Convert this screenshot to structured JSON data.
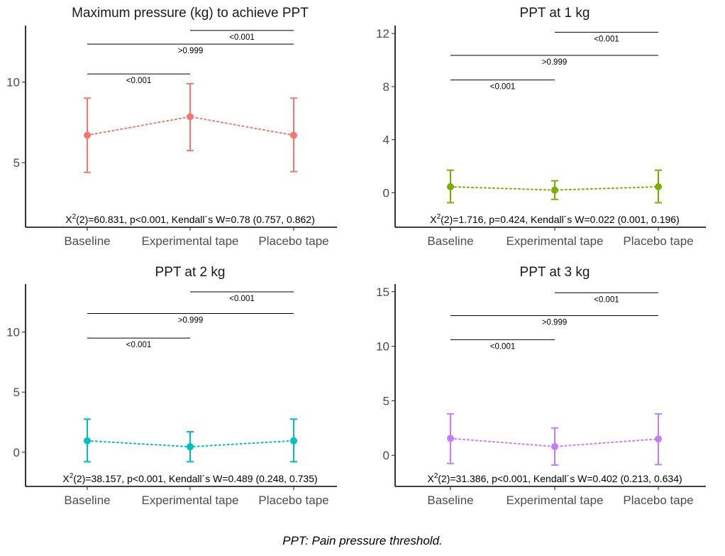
{
  "caption": "PPT: Pain pressure threshold.",
  "chart_data": [
    {
      "type": "line",
      "title": "Maximum pressure (kg) to achieve PPT",
      "color": "#F8766D",
      "categories": [
        "Baseline",
        "Experimental tape",
        "Placebo tape"
      ],
      "mean": [
        6.7,
        7.85,
        6.7
      ],
      "lower": [
        4.4,
        5.75,
        4.45
      ],
      "upper": [
        9.0,
        9.9,
        9.0
      ],
      "ylim": [
        1.0,
        13.5
      ],
      "yticks": [
        5,
        10
      ],
      "comparisons": [
        {
          "from": 0,
          "to": 1,
          "y": 10.5,
          "label": "<0.001"
        },
        {
          "from": 0,
          "to": 2,
          "y": 12.35,
          "label": ">0.999"
        },
        {
          "from": 1,
          "to": 2,
          "y": 13.2,
          "label": "<0.001"
        }
      ],
      "stat": {
        "x2": "X",
        "sup": "2",
        "rest": "(2)=60.831, p<0.001, Kendall´s W=0.78 (0.757, 0.862)"
      }
    },
    {
      "type": "line",
      "title": "PPT at 1 kg",
      "color": "#7CAE00",
      "categories": [
        "Baseline",
        "Experimental tape",
        "Placebo tape"
      ],
      "mean": [
        0.45,
        0.2,
        0.45
      ],
      "lower": [
        -0.75,
        -0.5,
        -0.75
      ],
      "upper": [
        1.7,
        0.9,
        1.7
      ],
      "ylim": [
        -2.6,
        12.6
      ],
      "yticks": [
        0,
        4,
        8,
        12
      ],
      "comparisons": [
        {
          "from": 0,
          "to": 1,
          "y": 8.5,
          "label": "<0.001"
        },
        {
          "from": 0,
          "to": 2,
          "y": 10.35,
          "label": ">0.999"
        },
        {
          "from": 1,
          "to": 2,
          "y": 12.1,
          "label": "<0.001"
        }
      ],
      "stat": {
        "x2": "X",
        "sup": "2",
        "rest": "(2)=1.716, p=0.424, Kendall´s W=0.022 (0.001, 0.196)"
      }
    },
    {
      "type": "line",
      "title": "PPT at 2 kg",
      "color": "#00BFC4",
      "categories": [
        "Baseline",
        "Experimental tape",
        "Placebo tape"
      ],
      "mean": [
        0.95,
        0.45,
        0.95
      ],
      "lower": [
        -0.8,
        -0.8,
        -0.8
      ],
      "upper": [
        2.75,
        1.7,
        2.75
      ],
      "ylim": [
        -2.85,
        14.0
      ],
      "yticks": [
        0,
        5,
        10
      ],
      "comparisons": [
        {
          "from": 0,
          "to": 1,
          "y": 9.5,
          "label": "<0.001"
        },
        {
          "from": 0,
          "to": 2,
          "y": 11.55,
          "label": ">0.999"
        },
        {
          "from": 1,
          "to": 2,
          "y": 13.35,
          "label": "<0.001"
        }
      ],
      "stat": {
        "x2": "X",
        "sup": "2",
        "rest": "(2)=38.157, p<0.001, Kendall´s W=0.489 (0.248, 0.735)"
      }
    },
    {
      "type": "line",
      "title": "PPT at 3 kg",
      "color": "#C77CFF",
      "categories": [
        "Baseline",
        "Experimental tape",
        "Placebo tape"
      ],
      "mean": [
        1.55,
        0.8,
        1.5
      ],
      "lower": [
        -0.75,
        -0.9,
        -0.85
      ],
      "upper": [
        3.8,
        2.5,
        3.8
      ],
      "ylim": [
        -2.85,
        15.7
      ],
      "yticks": [
        0,
        5,
        10,
        15
      ],
      "comparisons": [
        {
          "from": 0,
          "to": 1,
          "y": 10.6,
          "label": "<0.001"
        },
        {
          "from": 0,
          "to": 2,
          "y": 12.8,
          "label": ">0.999"
        },
        {
          "from": 1,
          "to": 2,
          "y": 14.9,
          "label": "<0.001"
        }
      ],
      "stat": {
        "x2": "X",
        "sup": "2",
        "rest": "(2)=31.386, p<0.001, Kendall´s W=0.402 (0.213, 0.634)"
      }
    }
  ]
}
